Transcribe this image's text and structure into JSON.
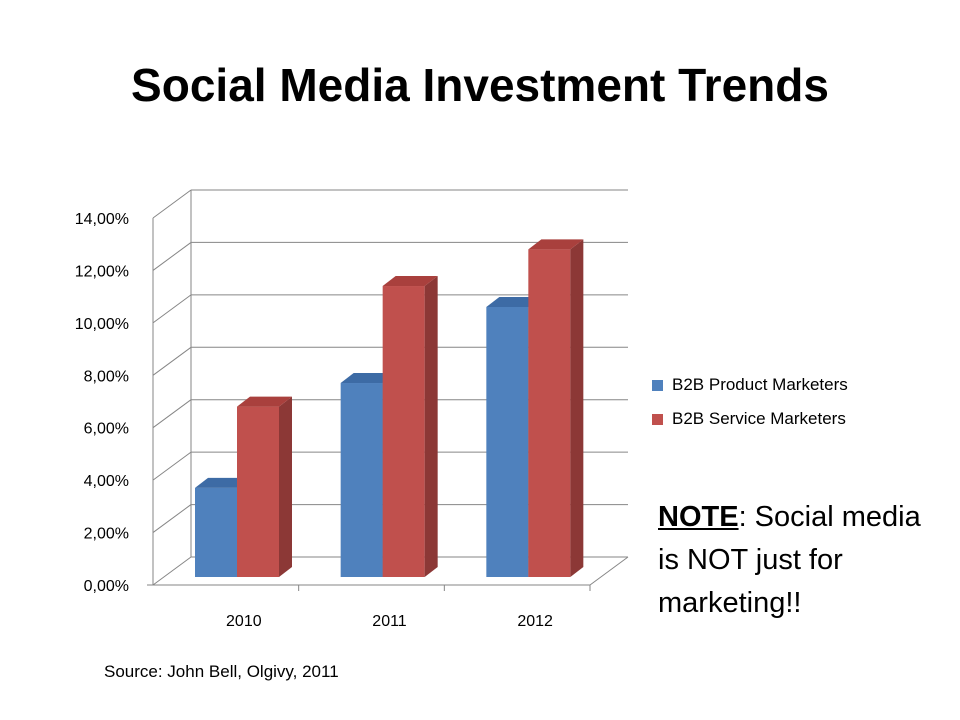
{
  "slide": {
    "title": "Social Media Investment Trends",
    "source": "Source: John Bell, Olgivy, 2011",
    "note": {
      "label": "NOTE",
      "text": ": Social media is NOT just for marketing!!"
    }
  },
  "chart_data": {
    "type": "bar",
    "categories": [
      "2010",
      "2011",
      "2012"
    ],
    "series": [
      {
        "name": "B2B Product Marketers",
        "values": [
          3.4,
          7.4,
          10.3
        ],
        "color": "#4F81BD",
        "side_color": "#385D8A",
        "top_color": "#3D6BA5"
      },
      {
        "name": "B2B Service Marketers",
        "values": [
          6.5,
          11.1,
          12.5
        ],
        "color": "#C0504D",
        "side_color": "#8C3836",
        "top_color": "#A9403D"
      }
    ],
    "yticks": [
      "0,00%",
      "2,00%",
      "4,00%",
      "6,00%",
      "8,00%",
      "10,00%",
      "12,00%",
      "14,00%"
    ],
    "ylim": [
      0,
      14
    ],
    "grid": true,
    "legend_position": "right",
    "style": "3d-clustered-column"
  }
}
